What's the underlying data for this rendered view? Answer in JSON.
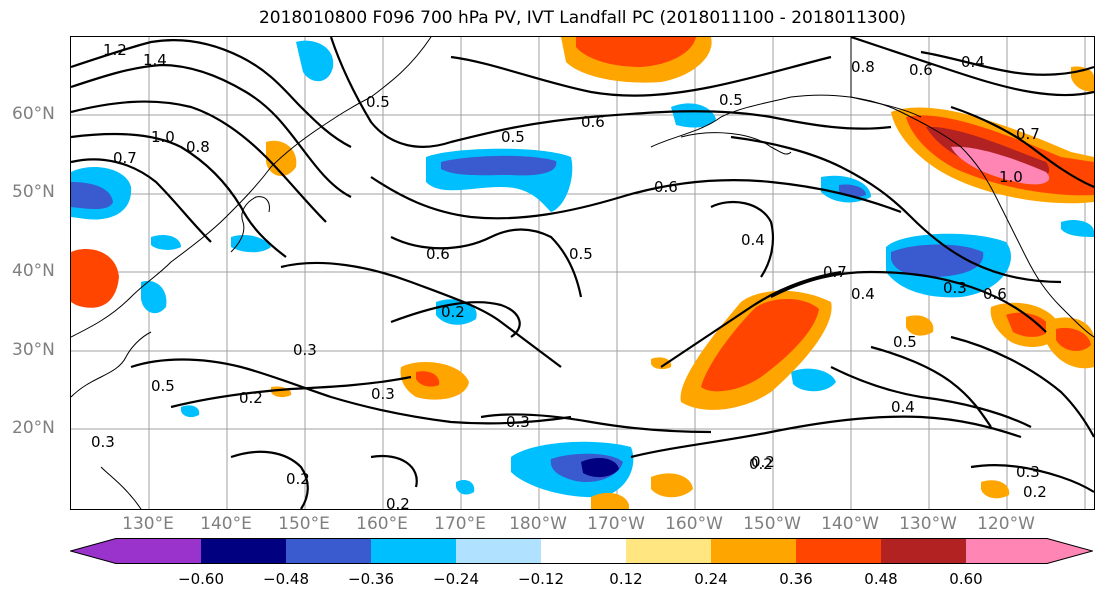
{
  "title": "2018010800 F096 700 hPa PV, IVT Landfall PC (2018011100 - 2018011300)",
  "lat_labels": [
    "60°N",
    "50°N",
    "40°N",
    "30°N",
    "20°N"
  ],
  "lon_labels": [
    "130°E",
    "140°E",
    "150°E",
    "160°E",
    "170°E",
    "180°W",
    "170°W",
    "160°W",
    "150°W",
    "140°W",
    "130°W",
    "120°W"
  ],
  "colorbar": {
    "ticks": [
      "−0.60",
      "−0.48",
      "−0.36",
      "−0.24",
      "−0.12",
      "0.12",
      "0.24",
      "0.36",
      "0.48",
      "0.60"
    ],
    "colors": [
      "#9933cc",
      "#000080",
      "#3a5bd0",
      "#00bfff",
      "#b0e2ff",
      "#ffffff",
      "#ffe680",
      "#ffa500",
      "#ff4500",
      "#b22222",
      "#ff85b4"
    ]
  },
  "contour_labels": [
    "1.2",
    "1.4",
    "1.0",
    "0.8",
    "0.7",
    "0.5",
    "0.6",
    "0.5",
    "0.6",
    "0.5",
    "0.6",
    "0.4",
    "0.5",
    "0.4",
    "0.3",
    "0.2",
    "0.3",
    "0.5",
    "0.2",
    "0.3",
    "0.3",
    "0.2",
    "0.2",
    "0.4",
    "0.7",
    "0.8",
    "0.6",
    "0.4",
    "1.0",
    "0.7",
    "0.3",
    "0.6",
    "0.5",
    "0.2",
    "0.3",
    "0.2",
    "0.2"
  ]
}
